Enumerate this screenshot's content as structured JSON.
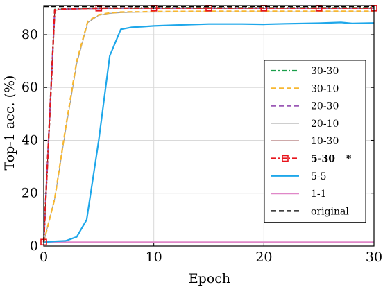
{
  "chart_data": {
    "type": "line",
    "xlabel": "Epoch",
    "ylabel": "Top-1 acc. (%)",
    "xlim": [
      0,
      30
    ],
    "ylim": [
      0,
      91
    ],
    "xticks": [
      0,
      10,
      20,
      30
    ],
    "yticks": [
      0,
      20,
      40,
      60,
      80
    ],
    "grid": true,
    "legend_position": "right",
    "series": [
      {
        "name": "30-30",
        "color": "#1a9e4a",
        "dash": "dashdot",
        "width": 2.2,
        "x": [
          0,
          1,
          2,
          3,
          4,
          5,
          6,
          7,
          8,
          9,
          10,
          15,
          20,
          25,
          30
        ],
        "y": [
          1.5,
          89.5,
          89.8,
          89.9,
          90.0,
          90.0,
          90.0,
          90.0,
          90.0,
          90.1,
          90.1,
          90.1,
          90.1,
          90.1,
          90.1
        ]
      },
      {
        "name": "30-10",
        "color": "#f7b731",
        "dash": "dashed",
        "width": 2.2,
        "x": [
          0,
          1,
          2,
          3,
          4,
          5,
          6,
          7,
          8,
          9,
          10,
          15,
          20,
          25,
          30
        ],
        "y": [
          1.5,
          18,
          45,
          70,
          85,
          87.5,
          88.2,
          88.5,
          88.6,
          88.6,
          88.7,
          88.8,
          88.8,
          88.8,
          88.8
        ]
      },
      {
        "name": "20-30",
        "color": "#9b59b6",
        "dash": "dashed",
        "width": 2.2,
        "x": [
          0,
          1,
          2,
          3,
          4,
          5,
          6,
          7,
          8,
          9,
          10,
          15,
          20,
          25,
          30
        ],
        "y": [
          1.5,
          89.3,
          89.7,
          89.8,
          89.9,
          89.9,
          90.0,
          90.0,
          90.0,
          90.0,
          90.0,
          90.0,
          90.0,
          90.0,
          90.0
        ]
      },
      {
        "name": "20-10",
        "color": "#9e9e9e",
        "dash": "solid",
        "width": 1.2,
        "x": [
          0,
          1,
          2,
          3,
          4,
          5,
          6,
          7,
          8,
          9,
          10,
          15,
          20,
          25,
          30
        ],
        "y": [
          1.5,
          18,
          44,
          69,
          84.5,
          87.3,
          88.0,
          88.3,
          88.4,
          88.5,
          88.5,
          88.6,
          88.6,
          88.6,
          88.6
        ]
      },
      {
        "name": "10-30",
        "color": "#7b1e1e",
        "dash": "solid",
        "width": 1.2,
        "x": [
          0,
          1,
          2,
          3,
          4,
          5,
          6,
          7,
          8,
          9,
          10,
          15,
          20,
          25,
          30
        ],
        "y": [
          1.5,
          89.2,
          89.6,
          89.7,
          89.8,
          89.8,
          89.9,
          89.9,
          89.9,
          89.9,
          89.9,
          89.9,
          89.9,
          89.9,
          89.9
        ]
      },
      {
        "name": "5-30",
        "bold": true,
        "suffix": "*",
        "color": "#e8141c",
        "dash": "dashdot",
        "width": 2.2,
        "marker": "square",
        "x": [
          0,
          1,
          2,
          3,
          4,
          5,
          6,
          7,
          8,
          9,
          10,
          15,
          20,
          25,
          30
        ],
        "y": [
          1.5,
          89.4,
          89.7,
          89.8,
          89.9,
          90.0,
          90.0,
          90.0,
          90.0,
          90.0,
          90.0,
          90.0,
          90.0,
          90.0,
          90.0
        ],
        "marker_x": [
          0,
          5,
          10,
          15,
          20,
          25,
          30
        ]
      },
      {
        "name": "5-5",
        "color": "#1ea7ea",
        "dash": "solid",
        "width": 2.2,
        "x": [
          0,
          1,
          2,
          3,
          3.9,
          5,
          6,
          7,
          8,
          9,
          10,
          12,
          15,
          18,
          20,
          22,
          25,
          27,
          28,
          30
        ],
        "y": [
          1.5,
          1.8,
          2.0,
          3.5,
          10.0,
          40.0,
          72.0,
          82.0,
          82.8,
          83.0,
          83.3,
          83.6,
          84.0,
          84.0,
          83.9,
          84.1,
          84.3,
          84.6,
          84.2,
          84.4
        ]
      },
      {
        "name": "1-1",
        "color": "#e087c8",
        "dash": "solid",
        "width": 2.2,
        "x": [
          0,
          30
        ],
        "y": [
          1.5,
          1.5
        ]
      },
      {
        "name": "original",
        "color": "#000000",
        "dash": "dashed",
        "width": 2.2,
        "x": [
          0,
          30
        ],
        "y": [
          90.7,
          90.7
        ]
      }
    ]
  }
}
